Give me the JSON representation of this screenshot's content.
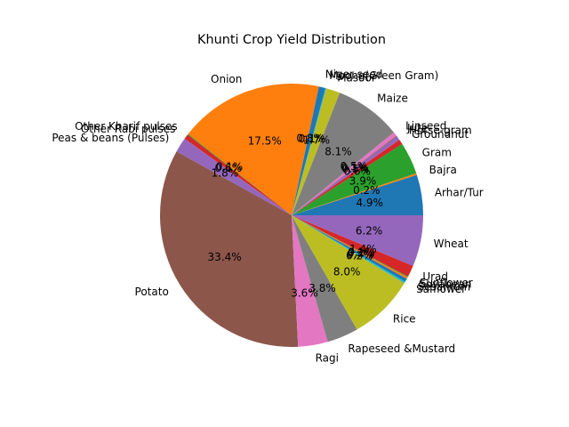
{
  "chart_data": {
    "type": "pie",
    "title": "Khunti Crop Yield Distribution",
    "start_angle_deg": 0,
    "direction": "counterclockwise",
    "autopct": "%.1f%%",
    "slices": [
      {
        "label": "Arhar/Tur",
        "value": 4.9,
        "pct_label": "4.9%",
        "color": "#1f77b4"
      },
      {
        "label": "Bajra",
        "value": 0.2,
        "pct_label": "0.2%",
        "color": "#ff7f0e"
      },
      {
        "label": "Gram",
        "value": 3.9,
        "pct_label": "3.9%",
        "color": "#2ca02c"
      },
      {
        "label": "Groundnut",
        "value": 0.6,
        "pct_label": "0.6%",
        "color": "#d62728"
      },
      {
        "label": "Horse-gram",
        "value": 0.5,
        "pct_label": "0.5%",
        "color": "#9467bd"
      },
      {
        "label": "Jute",
        "value": 0.1,
        "pct_label": "0.1%",
        "color": "#8c564b"
      },
      {
        "label": "Linseed",
        "value": 0.5,
        "pct_label": "0.5%",
        "color": "#e377c2"
      },
      {
        "label": "Maize",
        "value": 8.1,
        "pct_label": "8.1%",
        "color": "#7f7f7f"
      },
      {
        "label": "Masoor",
        "value": 1.7,
        "pct_label": "1.7%",
        "color": "#bcbd22"
      },
      {
        "label": "Moong(Green Gram)",
        "value": 0.1,
        "pct_label": "0.1%",
        "color": "#17becf"
      },
      {
        "label": "Niger seed",
        "value": 0.8,
        "pct_label": "0.8%",
        "color": "#1f77b4"
      },
      {
        "label": "Onion",
        "value": 17.5,
        "pct_label": "17.5%",
        "color": "#ff7f0e"
      },
      {
        "label": "Other Kharif pulses",
        "value": 0.1,
        "pct_label": "0.1%",
        "color": "#2ca02c"
      },
      {
        "label": "Other Rabi pulses",
        "value": 0.6,
        "pct_label": "0.6%",
        "color": "#d62728"
      },
      {
        "label": "Peas & beans (Pulses)",
        "value": 1.8,
        "pct_label": "1.8%",
        "color": "#9467bd"
      },
      {
        "label": "Potato",
        "value": 33.4,
        "pct_label": "33.4%",
        "color": "#8c564b"
      },
      {
        "label": "Ragi",
        "value": 3.6,
        "pct_label": "3.6%",
        "color": "#e377c2"
      },
      {
        "label": "Rapeseed &Mustard",
        "value": 3.8,
        "pct_label": "3.8%",
        "color": "#7f7f7f"
      },
      {
        "label": "Rice",
        "value": 8.0,
        "pct_label": "8.0%",
        "color": "#bcbd22"
      },
      {
        "label": "Safflower",
        "value": 0.2,
        "pct_label": "0.2%",
        "color": "#17becf"
      },
      {
        "label": "Sesamum",
        "value": 0.4,
        "pct_label": "0.4%",
        "color": "#1f77b4"
      },
      {
        "label": "Soyabean",
        "value": 0.2,
        "pct_label": "0.2%",
        "color": "#ff7f0e"
      },
      {
        "label": "Sunflower",
        "value": 0.1,
        "pct_label": "0.1%",
        "color": "#2ca02c"
      },
      {
        "label": "Urad",
        "value": 1.4,
        "pct_label": "1.4%",
        "color": "#d62728"
      },
      {
        "label": "Wheat",
        "value": 6.2,
        "pct_label": "6.2%",
        "color": "#9467bd"
      }
    ]
  }
}
